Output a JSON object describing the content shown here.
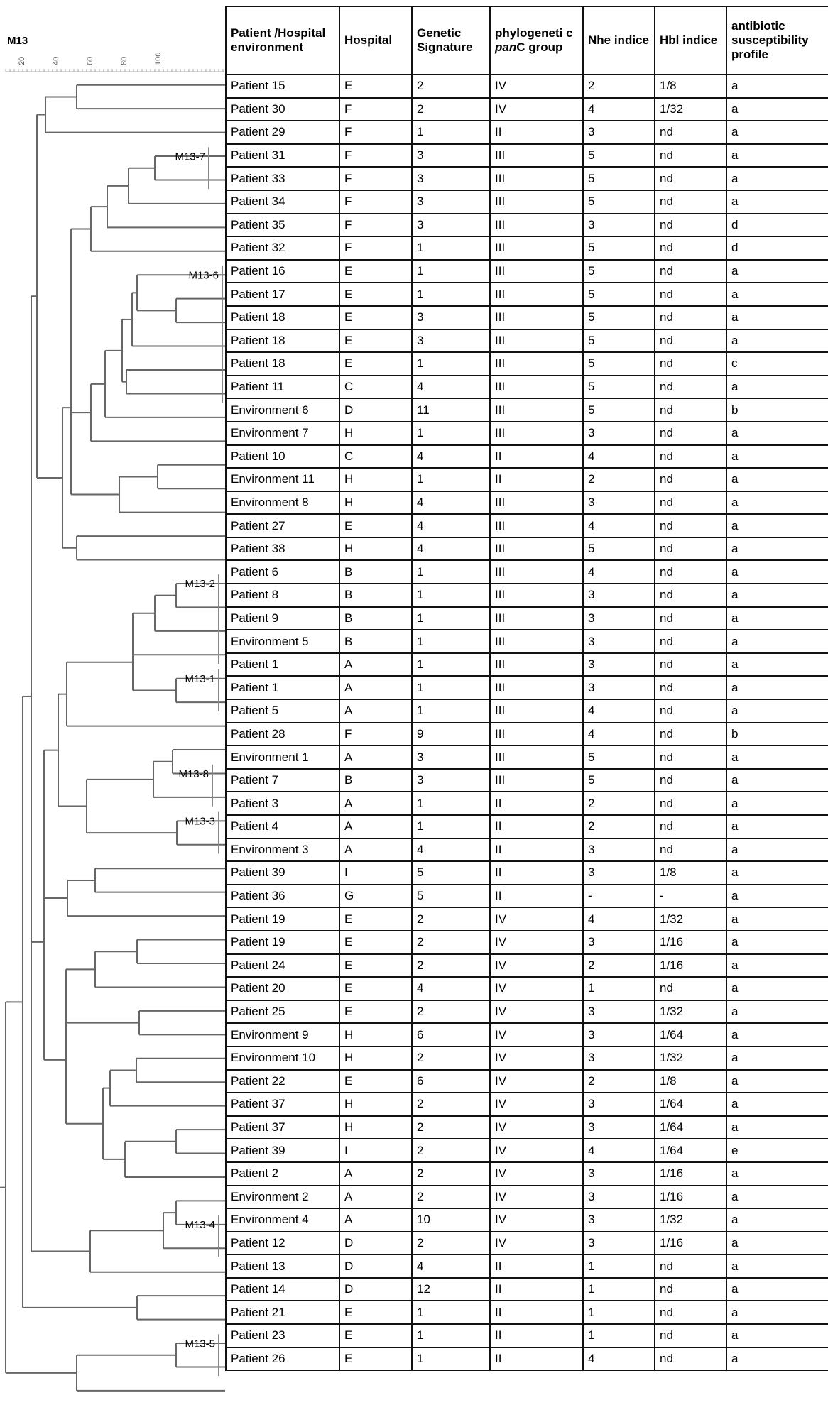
{
  "figure_title": "M13",
  "scale_ticks": [
    "20",
    "40",
    "60",
    "80",
    "100"
  ],
  "cluster_labels": [
    "M13-7",
    "M13-6",
    "M13-2",
    "M13-1",
    "M13-8",
    "M13-3",
    "M13-4",
    "M13-5"
  ],
  "table": {
    "headers": [
      "Patient /Hospital environment",
      "Hospital",
      "Genetic Signature",
      "phylogenetic panC group",
      "Nhe indice",
      "Hbl indice",
      "antibiotic susceptibility profile"
    ],
    "header_panC_parts": [
      "phylogeneti c ",
      "pan",
      "C group"
    ],
    "rows": [
      [
        "Patient 15",
        "E",
        "2",
        "IV",
        "2",
        "1/8",
        "a"
      ],
      [
        "Patient 30",
        "F",
        "2",
        "IV",
        "4",
        "1/32",
        "a"
      ],
      [
        "Patient 29",
        "F",
        "1",
        "II",
        "3",
        "nd",
        "a"
      ],
      [
        "Patient 31",
        "F",
        "3",
        "III",
        "5",
        "nd",
        "a"
      ],
      [
        "Patient 33",
        "F",
        "3",
        "III",
        "5",
        "nd",
        "a"
      ],
      [
        "Patient 34",
        "F",
        "3",
        "III",
        "5",
        "nd",
        "a"
      ],
      [
        "Patient 35",
        "F",
        "3",
        "III",
        "3",
        "nd",
        "d"
      ],
      [
        "Patient 32",
        "F",
        "1",
        "III",
        "5",
        "nd",
        "d"
      ],
      [
        "Patient 16",
        "E",
        "1",
        "III",
        "5",
        "nd",
        "a"
      ],
      [
        "Patient 17",
        "E",
        "1",
        "III",
        "5",
        "nd",
        "a"
      ],
      [
        "Patient 18",
        "E",
        "3",
        "III",
        "5",
        "nd",
        "a"
      ],
      [
        "Patient 18",
        "E",
        "3",
        "III",
        "5",
        "nd",
        "a"
      ],
      [
        "Patient 18",
        "E",
        "1",
        "III",
        "5",
        "nd",
        "c"
      ],
      [
        "Patient 11",
        "C",
        "4",
        "III",
        "5",
        "nd",
        "a"
      ],
      [
        "Environment 6",
        "D",
        "11",
        "III",
        "5",
        "nd",
        "b"
      ],
      [
        "Environment 7",
        "H",
        "1",
        "III",
        "3",
        "nd",
        "a"
      ],
      [
        "Patient 10",
        "C",
        "4",
        "II",
        "4",
        "nd",
        "a"
      ],
      [
        "Environment 11",
        "H",
        "1",
        "II",
        "2",
        "nd",
        "a"
      ],
      [
        "Environment 8",
        "H",
        "4",
        "III",
        "3",
        "nd",
        "a"
      ],
      [
        "Patient 27",
        "E",
        "4",
        "III",
        "4",
        "nd",
        "a"
      ],
      [
        "Patient 38",
        "H",
        "4",
        "III",
        "5",
        "nd",
        "a"
      ],
      [
        "Patient 6",
        "B",
        "1",
        "III",
        "4",
        "nd",
        "a"
      ],
      [
        "Patient 8",
        "B",
        "1",
        "III",
        "3",
        "nd",
        "a"
      ],
      [
        "Patient 9",
        "B",
        "1",
        "III",
        "3",
        "nd",
        "a"
      ],
      [
        "Environment 5",
        "B",
        "1",
        "III",
        "3",
        "nd",
        "a"
      ],
      [
        "Patient 1",
        "A",
        "1",
        "III",
        "3",
        "nd",
        "a"
      ],
      [
        "Patient 1",
        "A",
        "1",
        "III",
        "3",
        "nd",
        "a"
      ],
      [
        "Patient 5",
        "A",
        "1",
        "III",
        "4",
        "nd",
        "a"
      ],
      [
        "Patient 28",
        "F",
        "9",
        "III",
        "4",
        "nd",
        "b"
      ],
      [
        "Environment 1",
        "A",
        "3",
        "III",
        "5",
        "nd",
        "a"
      ],
      [
        "Patient 7",
        "B",
        "3",
        "III",
        "5",
        "nd",
        "a"
      ],
      [
        "Patient 3",
        "A",
        "1",
        "II",
        "2",
        "nd",
        "a"
      ],
      [
        "Patient 4",
        "A",
        "1",
        "II",
        "2",
        "nd",
        "a"
      ],
      [
        "Environment 3",
        "A",
        "4",
        "II",
        "3",
        "nd",
        "a"
      ],
      [
        "Patient 39",
        "I",
        "5",
        "II",
        "3",
        "1/8",
        "a"
      ],
      [
        "Patient 36",
        "G",
        "5",
        "II",
        "-",
        "-",
        "a"
      ],
      [
        "Patient 19",
        "E",
        "2",
        "IV",
        "4",
        "1/32",
        "a"
      ],
      [
        "Patient 19",
        "E",
        "2",
        "IV",
        "3",
        "1/16",
        "a"
      ],
      [
        "Patient 24",
        "E",
        "2",
        "IV",
        "2",
        "1/16",
        "a"
      ],
      [
        "Patient 20",
        "E",
        "4",
        "IV",
        "1",
        "nd",
        "a"
      ],
      [
        "Patient 25",
        "E",
        "2",
        "IV",
        "3",
        "1/32",
        "a"
      ],
      [
        "Environment 9",
        "H",
        "6",
        "IV",
        "3",
        "1/64",
        "a"
      ],
      [
        "Environment 10",
        "H",
        "2",
        "IV",
        "3",
        "1/32",
        "a"
      ],
      [
        "Patient 22",
        "E",
        "6",
        "IV",
        "2",
        "1/8",
        "a"
      ],
      [
        "Patient 37",
        "H",
        "2",
        "IV",
        "3",
        "1/64",
        "a"
      ],
      [
        "Patient 37",
        "H",
        "2",
        "IV",
        "3",
        "1/64",
        "a"
      ],
      [
        "Patient 39",
        "I",
        "2",
        "IV",
        "4",
        "1/64",
        "e"
      ],
      [
        "Patient 2",
        "A",
        "2",
        "IV",
        "3",
        "1/16",
        "a"
      ],
      [
        "Environment 2",
        "A",
        "2",
        "IV",
        "3",
        "1/16",
        "a"
      ],
      [
        "Environment 4",
        "A",
        "10",
        "IV",
        "3",
        "1/32",
        "a"
      ],
      [
        "Patient 12",
        "D",
        "2",
        "IV",
        "3",
        "1/16",
        "a"
      ],
      [
        "Patient 13",
        "D",
        "4",
        "II",
        "1",
        "nd",
        "a"
      ],
      [
        "Patient 14",
        "D",
        "12",
        "II",
        "1",
        "nd",
        "a"
      ],
      [
        "Patient 21",
        "E",
        "1",
        "II",
        "1",
        "nd",
        "a"
      ],
      [
        "Patient 23",
        "E",
        "1",
        "II",
        "1",
        "nd",
        "a"
      ],
      [
        "Patient 26",
        "E",
        "1",
        "II",
        "4",
        "nd",
        "a"
      ]
    ]
  }
}
